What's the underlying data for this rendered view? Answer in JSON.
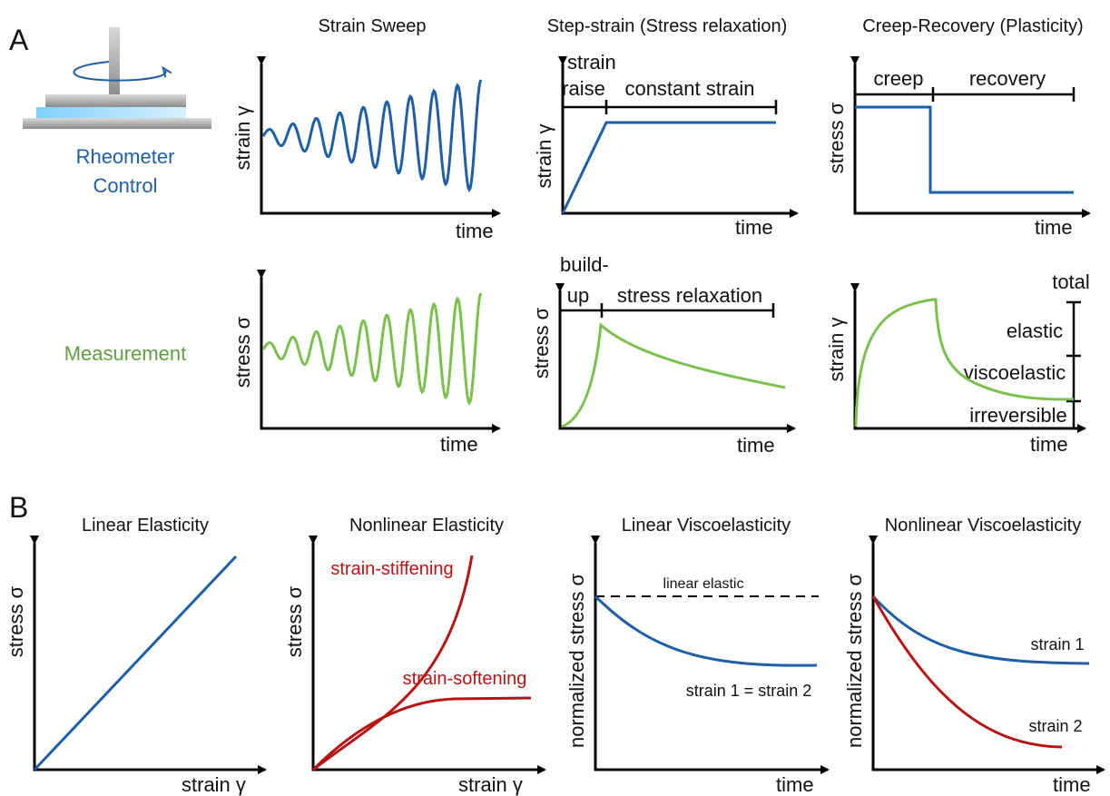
{
  "labels": {
    "A": "A",
    "B": "B"
  },
  "rheometer": {
    "line1": "Rheometer",
    "line2": "Control"
  },
  "measurement": "Measurement",
  "panels": [
    {
      "title": "Strain Sweep",
      "y_label": "strain γ",
      "x_label": "time"
    },
    {
      "y_label": "stress σ",
      "x_label": "time"
    },
    {
      "title": "Step-strain (Stress relaxation)",
      "y_label": "strain γ",
      "x_label": "time",
      "phase_label": "strain",
      "phases": [
        "raise",
        "constant strain"
      ]
    },
    {
      "y_label": "stress σ",
      "x_label": "time",
      "phase_label": "build-",
      "phases": [
        "up",
        "stress relaxation"
      ]
    },
    {
      "title": "Creep-Recovery (Plasticity)",
      "y_label": "stress σ",
      "x_label": "time",
      "phases": [
        "creep",
        "recovery"
      ]
    },
    {
      "y_label": "strain γ",
      "x_label": "time",
      "levels": [
        "total",
        "elastic",
        "viscoelastic",
        "irreversible"
      ]
    },
    {
      "title": "Linear Elasticity",
      "y_label": "stress σ",
      "x_label": "strain γ"
    },
    {
      "title": "Nonlinear Elasticity",
      "y_label": "stress σ",
      "x_label": "strain γ",
      "curves": [
        "strain-stiffening",
        "strain-softening"
      ]
    },
    {
      "title": "Linear Viscoelasticity",
      "y_label": "normalized stress σ",
      "x_label": "time",
      "reference": "linear elastic",
      "curves": [
        "strain 1 = strain 2"
      ]
    },
    {
      "title": "Nonlinear Viscoelasticity",
      "y_label": "normalized stress σ",
      "x_label": "time",
      "curves": [
        "strain 1",
        "strain 2"
      ]
    }
  ]
}
